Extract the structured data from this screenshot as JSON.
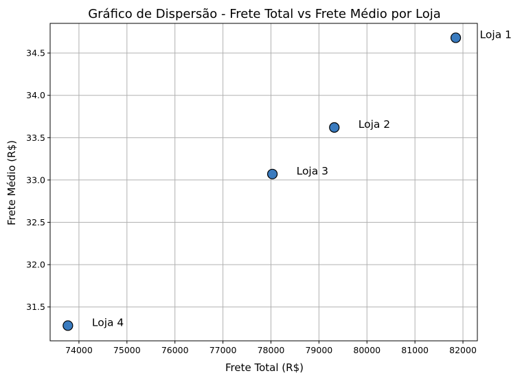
{
  "chart_data": {
    "type": "scatter",
    "title": "Gráfico de Dispersão - Frete Total vs Frete Médio por Loja",
    "xlabel": "Frete Total (R$)",
    "ylabel": "Frete Médio (R$)",
    "xlim": [
      73400,
      82300
    ],
    "ylim": [
      31.1,
      34.85
    ],
    "xticks": [
      74000,
      75000,
      76000,
      77000,
      78000,
      79000,
      80000,
      81000,
      82000
    ],
    "yticks": [
      31.5,
      32.0,
      32.5,
      33.0,
      33.5,
      34.0,
      34.5
    ],
    "grid": true,
    "marker_color": "#3a7bbf",
    "marker_edge_color": "#000000",
    "grid_color": "#b0b0b0",
    "points": [
      {
        "label": "Loja 1",
        "x": 81850,
        "y": 34.68
      },
      {
        "label": "Loja 2",
        "x": 79320,
        "y": 33.62
      },
      {
        "label": "Loja 3",
        "x": 78030,
        "y": 33.07
      },
      {
        "label": "Loja 4",
        "x": 73770,
        "y": 31.28
      }
    ]
  }
}
